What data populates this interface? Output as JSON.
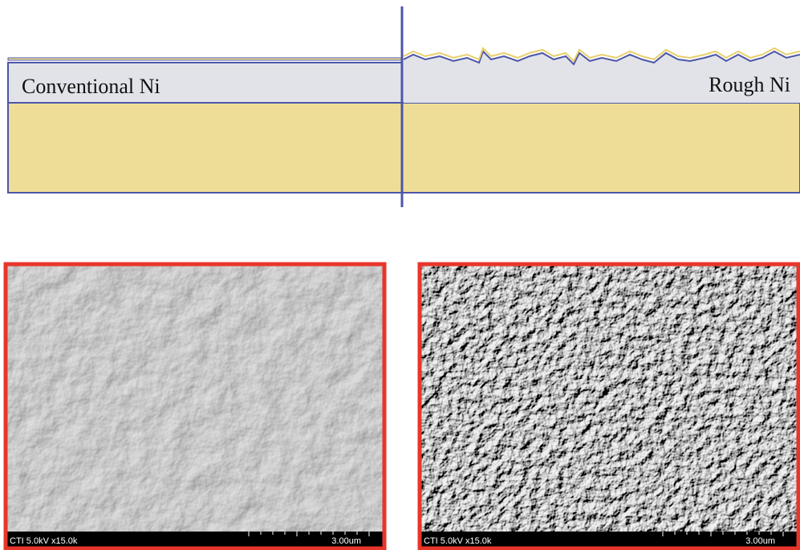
{
  "labels": {
    "left": "Conventional Ni",
    "right": "Rough Ni"
  },
  "images": [
    {
      "caption": "CTI 5.0kV x15.0k",
      "scale": "3.00um"
    },
    {
      "caption": "CTI 5.0kV x15.0k",
      "scale": "3.00um"
    }
  ]
}
